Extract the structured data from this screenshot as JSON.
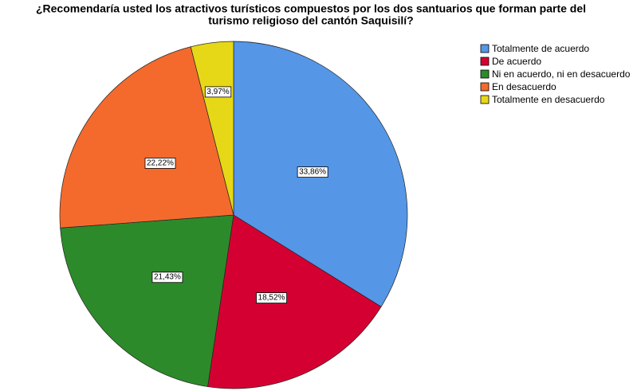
{
  "chart_data": {
    "type": "pie",
    "title": [
      "¿Recomendaría usted los atractivos turísticos compuestos por los dos santuarios que forman parte del",
      "turismo religioso del cantón Saquisilí?"
    ],
    "categories": [
      "Totalmente de acuerdo",
      "De acuerdo",
      "Ni en acuerdo, ni en desacuerdo",
      "En desacuerdo",
      "Totalmente en desacuerdo"
    ],
    "values": [
      33.86,
      18.52,
      21.43,
      22.22,
      3.97
    ],
    "value_labels": [
      "33,86%",
      "18,52%",
      "21,43%",
      "22,22%",
      "3,97%"
    ],
    "colors": [
      "#5596e6",
      "#d50032",
      "#2d8a2b",
      "#f46a2d",
      "#e6d817"
    ],
    "legend": "top-right"
  }
}
